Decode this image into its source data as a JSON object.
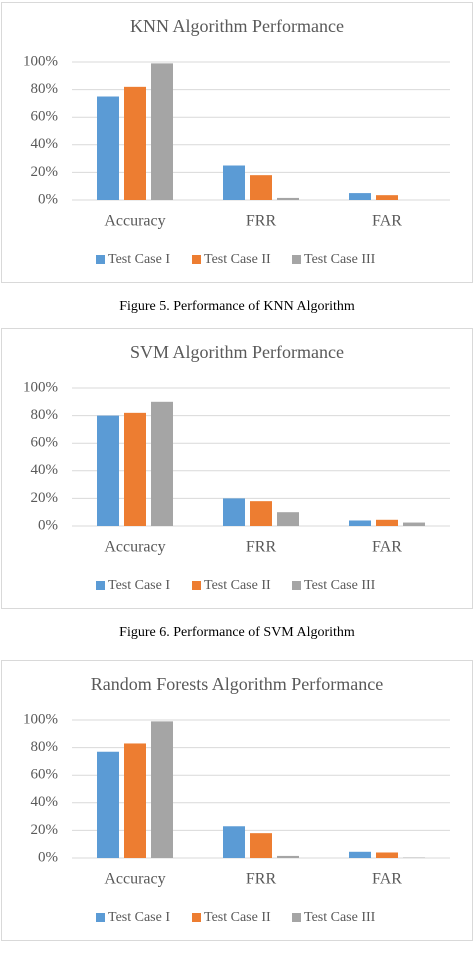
{
  "chart_data": [
    {
      "type": "bar",
      "title": "KNN Algorithm Performance",
      "caption": "Figure 5. Performance of KNN Algorithm",
      "categories": [
        "Accuracy",
        "FRR",
        "FAR"
      ],
      "series": [
        {
          "name": "Test Case I",
          "color": "#5b9bd5",
          "values": [
            75,
            25,
            5
          ]
        },
        {
          "name": "Test Case II",
          "color": "#ed7d31",
          "values": [
            82,
            18,
            3.5
          ]
        },
        {
          "name": "Test Case III",
          "color": "#a5a5a5",
          "values": [
            99,
            1.5,
            0
          ]
        }
      ],
      "ylim": [
        0,
        100
      ],
      "yticks": [
        {
          "value": 0,
          "label": "0%"
        },
        {
          "value": 20,
          "label": "20%"
        },
        {
          "value": 40,
          "label": "40%"
        },
        {
          "value": 60,
          "label": "60%"
        },
        {
          "value": 80,
          "label": "80%"
        },
        {
          "value": 100,
          "label": "100%"
        }
      ],
      "grid": true,
      "legend": "bottom"
    },
    {
      "type": "bar",
      "title": "SVM Algorithm Performance",
      "caption": "Figure 6. Performance of SVM Algorithm",
      "categories": [
        "Accuracy",
        "FRR",
        "FAR"
      ],
      "series": [
        {
          "name": "Test Case I",
          "color": "#5b9bd5",
          "values": [
            80,
            20,
            4
          ]
        },
        {
          "name": "Test Case II",
          "color": "#ed7d31",
          "values": [
            82,
            18,
            4.5
          ]
        },
        {
          "name": "Test Case III",
          "color": "#a5a5a5",
          "values": [
            90,
            10,
            2.5
          ]
        }
      ],
      "ylim": [
        0,
        100
      ],
      "yticks": [
        {
          "value": 0,
          "label": "0%"
        },
        {
          "value": 20,
          "label": "20%"
        },
        {
          "value": 40,
          "label": "40%"
        },
        {
          "value": 60,
          "label": "60%"
        },
        {
          "value": 80,
          "label": "80%"
        },
        {
          "value": 100,
          "label": "100%"
        }
      ],
      "grid": true,
      "legend": "bottom"
    },
    {
      "type": "bar",
      "title": "Random Forests Algorithm Performance",
      "categories": [
        "Accuracy",
        "FRR",
        "FAR"
      ],
      "series": [
        {
          "name": "Test Case I",
          "color": "#5b9bd5",
          "values": [
            77,
            23,
            4.5
          ]
        },
        {
          "name": "Test Case II",
          "color": "#ed7d31",
          "values": [
            83,
            18,
            4
          ]
        },
        {
          "name": "Test Case III",
          "color": "#a5a5a5",
          "values": [
            99,
            1.5,
            0.3
          ]
        }
      ],
      "ylim": [
        0,
        100
      ],
      "yticks": [
        {
          "value": 0,
          "label": "0%"
        },
        {
          "value": 20,
          "label": "20%"
        },
        {
          "value": 40,
          "label": "40%"
        },
        {
          "value": 60,
          "label": "60%"
        },
        {
          "value": 80,
          "label": "80%"
        },
        {
          "value": 100,
          "label": "100%"
        }
      ],
      "grid": true,
      "legend": "bottom"
    }
  ]
}
